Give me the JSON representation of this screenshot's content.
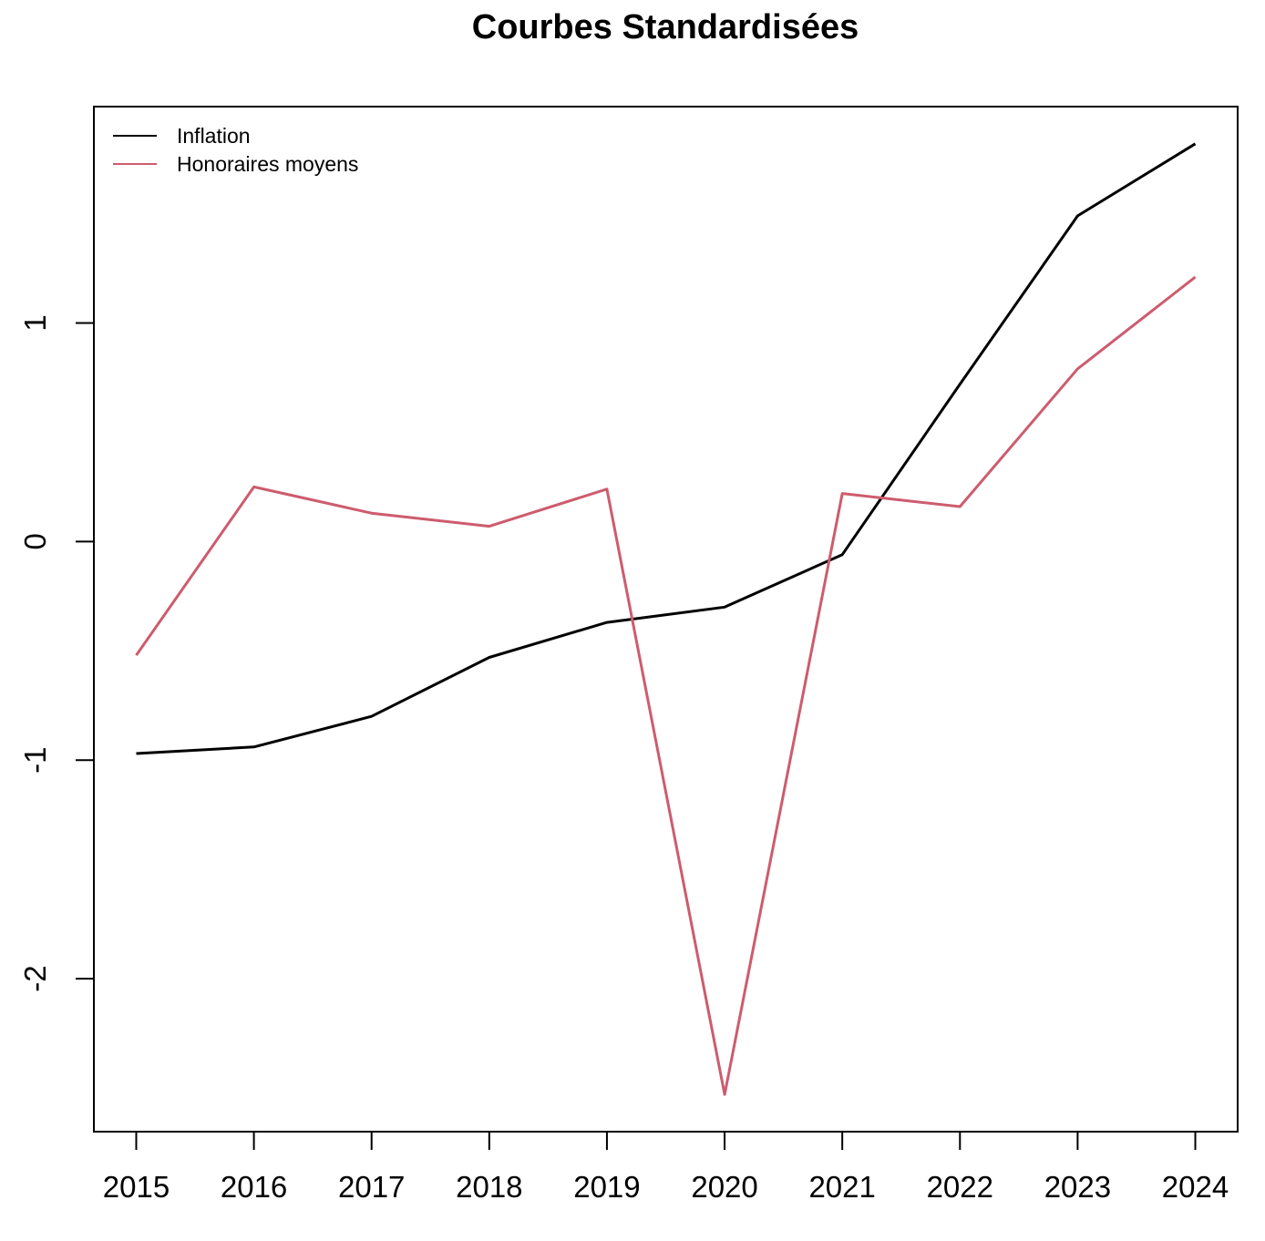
{
  "chart_data": {
    "type": "line",
    "title": "Courbes Standardisées",
    "xlabel": "",
    "ylabel": "",
    "x": [
      2015,
      2016,
      2017,
      2018,
      2019,
      2020,
      2021,
      2022,
      2023,
      2024
    ],
    "x_tick_labels": [
      "2015",
      "2016",
      "2017",
      "2018",
      "2019",
      "2020",
      "2021",
      "2022",
      "2023",
      "2024"
    ],
    "y_ticks": [
      -2,
      -1,
      0,
      1
    ],
    "y_tick_labels": [
      "-2",
      "-1",
      "0",
      "1"
    ],
    "xlim": [
      2014.64,
      2024.36
    ],
    "ylim": [
      -2.7,
      1.99
    ],
    "grid": false,
    "legend_position": "top-left",
    "series": [
      {
        "name": "Inflation",
        "color": "#000000",
        "values": [
          -0.97,
          -0.94,
          -0.8,
          -0.53,
          -0.37,
          -0.3,
          -0.06,
          0.72,
          1.49,
          1.82
        ]
      },
      {
        "name": "Honoraires moyens",
        "color": "#CD5C6E",
        "values": [
          -0.52,
          0.25,
          0.13,
          0.07,
          0.24,
          -2.53,
          0.22,
          0.16,
          0.79,
          1.21
        ]
      }
    ]
  }
}
